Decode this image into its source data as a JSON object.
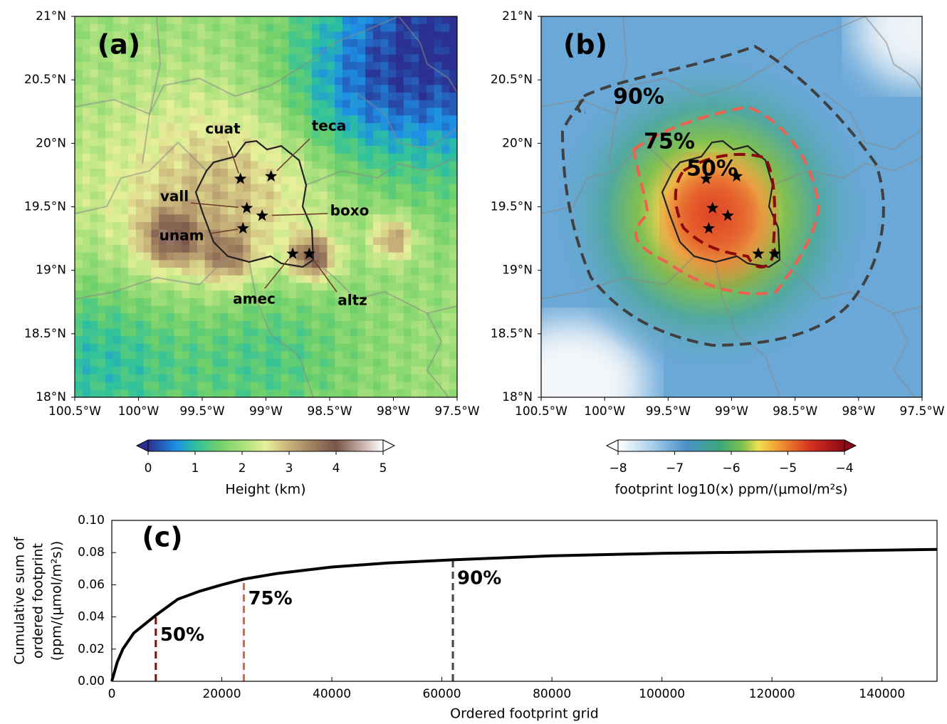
{
  "maps": [
    {
      "label": "(a)",
      "xlim": [
        -100.5,
        -97.5
      ],
      "ylim": [
        18,
        21
      ],
      "xticks": [
        {
          "value": -100.5,
          "label": "100.5°W"
        },
        {
          "value": -100,
          "label": "100°W"
        },
        {
          "value": -99.5,
          "label": "99.5°W"
        },
        {
          "value": -99,
          "label": "99°W"
        },
        {
          "value": -98.5,
          "label": "98.5°W"
        },
        {
          "value": -98,
          "label": "98°W"
        },
        {
          "value": -97.5,
          "label": "97.5°W"
        }
      ],
      "yticks": [
        {
          "value": 18,
          "label": "18°N"
        },
        {
          "value": 18.5,
          "label": "18.5°N"
        },
        {
          "value": 19,
          "label": "19°N"
        },
        {
          "value": 19.5,
          "label": "19.5°N"
        },
        {
          "value": 20,
          "label": "20°N"
        },
        {
          "value": 20.5,
          "label": "20.5°N"
        },
        {
          "value": 21,
          "label": "21°N"
        }
      ],
      "colorbar": {
        "label": "Height (km)",
        "lim": [
          0,
          5
        ],
        "ticks": [
          0,
          1,
          2,
          3,
          4,
          5
        ]
      }
    },
    {
      "label": "(b)",
      "xlim": [
        -100.5,
        -97.5
      ],
      "ylim": [
        18,
        21
      ],
      "xticks": [
        {
          "value": -100.5,
          "label": "100.5°W"
        },
        {
          "value": -100,
          "label": "100°W"
        },
        {
          "value": -99.5,
          "label": "99.5°W"
        },
        {
          "value": -99,
          "label": "99°W"
        },
        {
          "value": -98.5,
          "label": "98.5°W"
        },
        {
          "value": -98,
          "label": "98°W"
        },
        {
          "value": -97.5,
          "label": "97.5°W"
        }
      ],
      "yticks": [
        {
          "value": 18,
          "label": "18°N"
        },
        {
          "value": 18.5,
          "label": "18.5°N"
        },
        {
          "value": 19,
          "label": "19°N"
        },
        {
          "value": 19.5,
          "label": "19.5°N"
        },
        {
          "value": 20,
          "label": "20°N"
        },
        {
          "value": 20.5,
          "label": "20.5°N"
        },
        {
          "value": 21,
          "label": "21°N"
        }
      ],
      "colorbar": {
        "label": "footprint log10(x) ppm/(µmol/m²s)",
        "lim": [
          -8,
          -4
        ],
        "ticks": [
          {
            "value": -8,
            "label": "−8"
          },
          {
            "value": -7,
            "label": "−7"
          },
          {
            "value": -6,
            "label": "−6"
          },
          {
            "value": -5,
            "label": "−5"
          },
          {
            "value": -4,
            "label": "−4"
          }
        ]
      }
    }
  ],
  "sites": [
    {
      "name": "cuat",
      "lon": -99.2,
      "lat": 19.72
    },
    {
      "name": "teca",
      "lon": -98.96,
      "lat": 19.74
    },
    {
      "name": "vall",
      "lon": -99.15,
      "lat": 19.49
    },
    {
      "name": "boxo",
      "lon": -99.03,
      "lat": 19.43
    },
    {
      "name": "unam",
      "lon": -99.18,
      "lat": 19.33
    },
    {
      "name": "amec",
      "lon": -98.79,
      "lat": 19.13
    },
    {
      "name": "altz",
      "lon": -98.66,
      "lat": 19.13
    }
  ],
  "chart_data": {
    "type": "line",
    "label": "(c)",
    "ylabel": [
      "Cumulative sum of",
      "ordered footprint",
      "(ppm/(µmol/m²s))"
    ],
    "xlabel": "Ordered footprint grid",
    "x": [
      0,
      1000,
      2000,
      4000,
      8000,
      12000,
      16000,
      20000,
      24000,
      30000,
      40000,
      50000,
      62000,
      80000,
      100000,
      120000,
      150000
    ],
    "values": [
      0,
      0.012,
      0.02,
      0.03,
      0.041,
      0.051,
      0.056,
      0.06,
      0.0635,
      0.067,
      0.071,
      0.0735,
      0.0755,
      0.078,
      0.0795,
      0.0805,
      0.082
    ],
    "color": "#000000",
    "xlim": [
      0,
      150000
    ],
    "xticks": [
      0,
      20000,
      40000,
      60000,
      80000,
      100000,
      120000,
      140000
    ],
    "ylim": [
      0,
      0.1
    ],
    "yticks": [
      {
        "value": 0,
        "label": "0.00"
      },
      0.02,
      0.04,
      0.06,
      0.08,
      {
        "value": 0.1,
        "label": "0.10"
      }
    ],
    "thresholds": [
      {
        "label": "50%",
        "x": 8000,
        "y": 0.041,
        "color": "#8b0a0a"
      },
      {
        "label": "75%",
        "x": 24000,
        "y": 0.0635,
        "color": "#e8604a"
      },
      {
        "label": "90%",
        "x": 62000,
        "y": 0.076,
        "color": "#3b4848"
      }
    ]
  }
}
